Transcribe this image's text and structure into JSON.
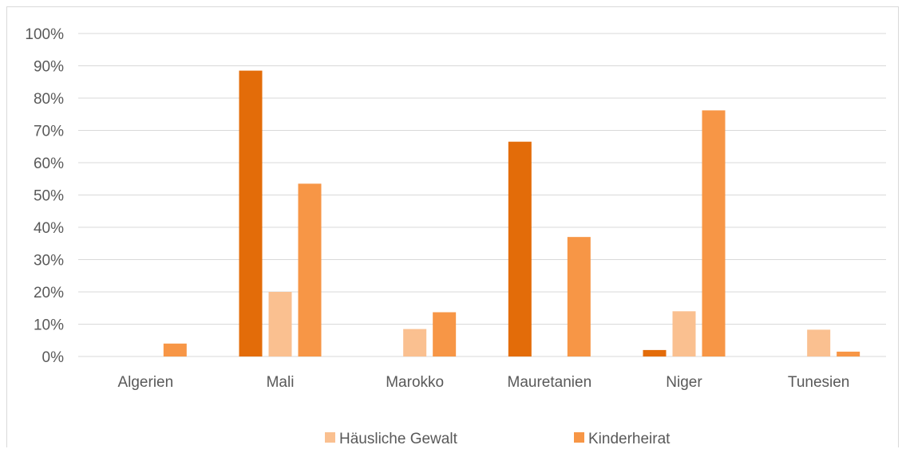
{
  "chart_data": {
    "type": "bar",
    "categories": [
      "Algerien",
      "Mali",
      "Marokko",
      "Mauretanien",
      "Niger",
      "Tunesien"
    ],
    "series": [
      {
        "name": "",
        "color": "#E36C09",
        "values": [
          0,
          88.5,
          0,
          66.5,
          2,
          0
        ]
      },
      {
        "name": "Häusliche Gewalt",
        "color": "#FAC090",
        "values": [
          0,
          20,
          8.5,
          0,
          14,
          8.3
        ]
      },
      {
        "name": "Kinderheirat",
        "color": "#F79646",
        "values": [
          4,
          53.5,
          13.7,
          37,
          76.2,
          1.5
        ]
      }
    ],
    "y_ticks": [
      "0%",
      "10%",
      "20%",
      "30%",
      "40%",
      "50%",
      "60%",
      "70%",
      "80%",
      "90%",
      "100%"
    ],
    "ylim": [
      0,
      100
    ],
    "grid": true,
    "legend_position": "bottom",
    "legend": [
      "Häusliche Gewalt",
      "Kinderheirat"
    ],
    "title": "",
    "xlabel": "",
    "ylabel": ""
  }
}
